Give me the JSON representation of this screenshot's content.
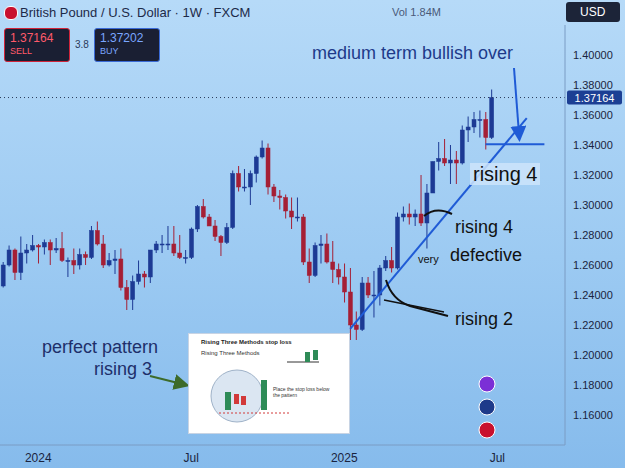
{
  "header": {
    "title": "British Pound / U.S. Dollar · 1W · FXCM",
    "volume": "Vol 1.84M",
    "sell_price": "1.37164",
    "sell_label": "SELL",
    "spread": "3.8",
    "buy_price": "1.37202",
    "buy_label": "BUY",
    "currency": "USD"
  },
  "chart_data": {
    "type": "candlestick",
    "categories": [
      null,
      null,
      null,
      null,
      null,
      null,
      "2024",
      null,
      null,
      null,
      null,
      null,
      null,
      null,
      null,
      null,
      null,
      null,
      null,
      null,
      null,
      null,
      null,
      null,
      null,
      null,
      null,
      null,
      null,
      null,
      null,
      null,
      "Jul",
      null,
      null,
      null,
      null,
      null,
      null,
      null,
      null,
      null,
      null,
      null,
      null,
      null,
      null,
      null,
      null,
      null,
      null,
      null,
      null,
      null,
      null,
      null,
      null,
      null,
      "2025",
      null,
      null,
      null,
      null,
      null,
      null,
      null,
      null,
      null,
      null,
      null,
      null,
      null,
      null,
      null,
      null,
      null,
      null,
      null,
      null,
      null,
      null,
      null,
      null,
      null,
      "Jul",
      null,
      null,
      null,
      null,
      null,
      null,
      null,
      null,
      null,
      null,
      null
    ],
    "open": [
      1.246,
      1.26,
      1.27,
      1.255,
      1.268,
      1.27,
      1.273,
      1.272,
      1.275,
      1.27,
      1.271,
      1.263,
      1.263,
      1.26,
      1.267,
      1.265,
      1.283,
      1.274,
      1.26,
      1.263,
      1.264,
      1.245,
      1.237,
      1.249,
      1.254,
      1.252,
      1.27,
      1.274,
      1.274,
      1.274,
      1.268,
      1.265,
      1.265,
      1.284,
      1.299,
      1.292,
      1.286,
      1.279,
      1.275,
      1.285,
      1.321,
      1.312,
      1.312,
      1.321,
      1.332,
      1.338,
      1.312,
      1.306,
      1.305,
      1.296,
      1.292,
      1.292,
      1.262,
      1.253,
      1.273,
      1.274,
      1.262,
      1.257,
      1.252,
      1.242,
      1.22,
      1.217,
      1.248,
      1.24,
      1.24,
      1.258,
      1.263,
      1.258,
      1.292,
      1.294,
      1.292,
      1.294,
      1.288,
      1.308,
      1.329,
      1.331,
      1.328,
      1.33,
      1.328,
      1.35,
      1.352,
      1.357,
      1.357,
      1.345,
      null,
      null,
      null,
      null,
      null,
      null,
      null,
      null,
      null,
      null,
      null,
      null
    ],
    "high": [
      1.262,
      1.273,
      1.271,
      1.279,
      1.274,
      1.28,
      1.274,
      1.277,
      1.277,
      1.278,
      1.282,
      1.265,
      1.271,
      1.271,
      1.269,
      1.286,
      1.289,
      1.28,
      1.268,
      1.27,
      1.271,
      1.25,
      1.253,
      1.263,
      1.256,
      1.27,
      1.276,
      1.28,
      1.286,
      1.286,
      1.28,
      1.27,
      1.285,
      1.3,
      1.304,
      1.294,
      1.29,
      1.28,
      1.288,
      1.323,
      1.326,
      1.324,
      1.323,
      1.333,
      1.343,
      1.341,
      1.314,
      1.31,
      1.307,
      1.305,
      1.305,
      1.294,
      1.271,
      1.275,
      1.28,
      1.281,
      1.276,
      1.261,
      1.261,
      1.258,
      1.229,
      1.252,
      1.252,
      1.256,
      1.26,
      1.266,
      1.272,
      1.295,
      1.299,
      1.301,
      1.297,
      1.32,
      1.314,
      1.329,
      1.342,
      1.344,
      1.34,
      1.336,
      1.353,
      1.359,
      1.362,
      1.363,
      1.362,
      1.377,
      null,
      null,
      null,
      null,
      null,
      null,
      null,
      null,
      null,
      null,
      null,
      null
    ],
    "low": [
      1.245,
      1.259,
      1.25,
      1.25,
      1.261,
      1.269,
      1.261,
      1.267,
      1.26,
      1.268,
      1.262,
      1.252,
      1.254,
      1.257,
      1.26,
      1.264,
      1.273,
      1.258,
      1.259,
      1.254,
      1.243,
      1.23,
      1.23,
      1.247,
      1.245,
      1.248,
      1.268,
      1.268,
      1.27,
      1.266,
      1.264,
      1.261,
      1.264,
      1.282,
      1.291,
      1.286,
      1.276,
      1.266,
      1.274,
      1.284,
      1.309,
      1.309,
      1.3,
      1.315,
      1.331,
      1.307,
      1.302,
      1.297,
      1.291,
      1.284,
      1.289,
      1.26,
      1.248,
      1.252,
      1.261,
      1.261,
      1.248,
      1.247,
      1.235,
      1.21,
      1.21,
      1.216,
      1.238,
      1.225,
      1.233,
      1.256,
      1.255,
      1.257,
      1.289,
      1.287,
      1.286,
      1.286,
      1.271,
      1.308,
      1.323,
      1.326,
      1.314,
      1.314,
      1.327,
      1.342,
      1.348,
      1.345,
      1.337,
      1.344,
      null,
      null,
      null,
      null,
      null,
      null,
      null,
      null,
      null,
      null,
      null,
      null
    ],
    "close": [
      1.26,
      1.27,
      1.255,
      1.268,
      1.27,
      1.273,
      1.272,
      1.275,
      1.27,
      1.271,
      1.263,
      1.263,
      1.26,
      1.267,
      1.265,
      1.283,
      1.274,
      1.26,
      1.263,
      1.264,
      1.245,
      1.237,
      1.249,
      1.254,
      1.252,
      1.27,
      1.274,
      1.274,
      1.274,
      1.268,
      1.265,
      1.265,
      1.284,
      1.299,
      1.292,
      1.286,
      1.279,
      1.275,
      1.285,
      1.321,
      1.312,
      1.312,
      1.321,
      1.332,
      1.338,
      1.312,
      1.306,
      1.305,
      1.296,
      1.292,
      1.292,
      1.262,
      1.253,
      1.273,
      1.274,
      1.262,
      1.257,
      1.252,
      1.242,
      1.22,
      1.217,
      1.248,
      1.24,
      1.24,
      1.258,
      1.263,
      1.258,
      1.292,
      1.294,
      1.292,
      1.294,
      1.288,
      1.308,
      1.329,
      1.331,
      1.328,
      1.33,
      1.328,
      1.35,
      1.352,
      1.357,
      1.357,
      1.345,
      1.3716,
      null,
      null,
      null,
      null,
      null,
      null,
      null,
      null,
      null,
      null,
      null,
      null
    ],
    "ylim": [
      1.14,
      1.42
    ],
    "yticks": [
      {
        "value": 1.16,
        "label": "1.16000"
      },
      {
        "value": 1.18,
        "label": "1.18000"
      },
      {
        "value": 1.2,
        "label": "1.20000"
      },
      {
        "value": 1.22,
        "label": "1.22000"
      },
      {
        "value": 1.24,
        "label": "1.24000"
      },
      {
        "value": 1.26,
        "label": "1.26000"
      },
      {
        "value": 1.28,
        "label": "1.28000"
      },
      {
        "value": 1.3,
        "label": "1.30000"
      },
      {
        "value": 1.32,
        "label": "1.32000"
      },
      {
        "value": 1.34,
        "label": "1.34000"
      },
      {
        "value": 1.36,
        "label": "1.36000"
      },
      {
        "value": 1.38,
        "label": "1.38000"
      },
      {
        "value": 1.4,
        "label": "1.40000"
      }
    ],
    "grid": false,
    "last_price": 1.37164,
    "trendline": {
      "x": [
        59,
        89
      ],
      "y": [
        1.2174,
        1.3579
      ]
    },
    "support_line": {
      "x": [
        82,
        92
      ],
      "y": 1.3405
    }
  },
  "annotations": {
    "bullish": "medium term bullish over",
    "rising4_upper": "rising 4",
    "rising4_lower": "rising 4",
    "very": "very",
    "defective": "defective",
    "rising2": "rising 2",
    "perfect_line1": "perfect pattern",
    "perfect_line2": "rising 3"
  },
  "inset": {
    "title": "Rising Three Methods stop loss",
    "subtitle": "Rising Three Methods",
    "note": "Place the stop loss below the pattern"
  }
}
